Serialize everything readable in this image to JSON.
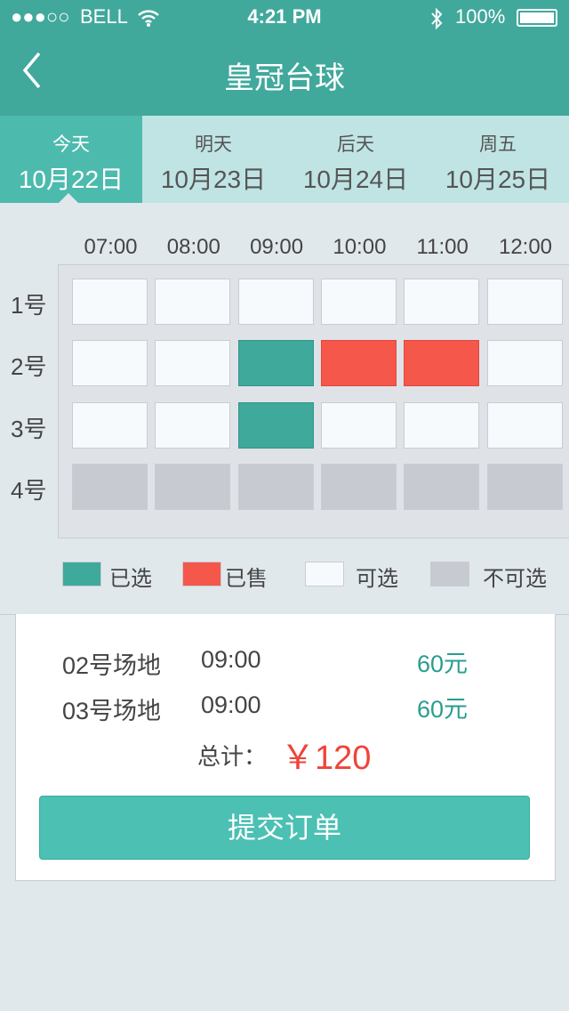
{
  "status_bar": {
    "signal": "●●●○○",
    "carrier": "BELL",
    "time": "4:21 PM",
    "battery": "100%"
  },
  "header": {
    "title": "皇冠台球",
    "back_icon": "chevron-left-icon"
  },
  "date_tabs": [
    {
      "day": "今天",
      "date": "10月22日",
      "active": true
    },
    {
      "day": "明天",
      "date": "10月23日",
      "active": false
    },
    {
      "day": "后天",
      "date": "10月24日",
      "active": false
    },
    {
      "day": "周五",
      "date": "10月25日",
      "active": false
    }
  ],
  "times": [
    "07:00",
    "08:00",
    "09:00",
    "10:00",
    "11:00",
    "12:00"
  ],
  "tables": [
    {
      "label": "1号",
      "slots": [
        "available",
        "available",
        "available",
        "available",
        "available",
        "available"
      ]
    },
    {
      "label": "2号",
      "slots": [
        "available",
        "available",
        "selected",
        "sold",
        "sold",
        "available"
      ]
    },
    {
      "label": "3号",
      "slots": [
        "available",
        "available",
        "selected",
        "available",
        "available",
        "available"
      ]
    },
    {
      "label": "4号",
      "slots": [
        "unavailable",
        "unavailable",
        "unavailable",
        "unavailable",
        "unavailable",
        "unavailable"
      ]
    }
  ],
  "colors": {
    "selected": "#3fa99b",
    "sold": "#f5574b",
    "available": "#f6fafd",
    "unavailable": "#c7cad1",
    "accent": "#41a89c",
    "price": "#2a9d8f",
    "total": "#f0433a"
  },
  "legend": [
    {
      "state": "selected",
      "label": "已选"
    },
    {
      "state": "sold",
      "label": "已售"
    },
    {
      "state": "available",
      "label": "可选"
    },
    {
      "state": "unavailable",
      "label": "不可选"
    }
  ],
  "order": {
    "items": [
      {
        "court": "02号场地",
        "time": "09:00",
        "price": "60元"
      },
      {
        "court": "03号场地",
        "time": "09:00",
        "price": "60元"
      }
    ],
    "total_label": "总计：",
    "total": "￥120",
    "submit_label": "提交订单"
  }
}
